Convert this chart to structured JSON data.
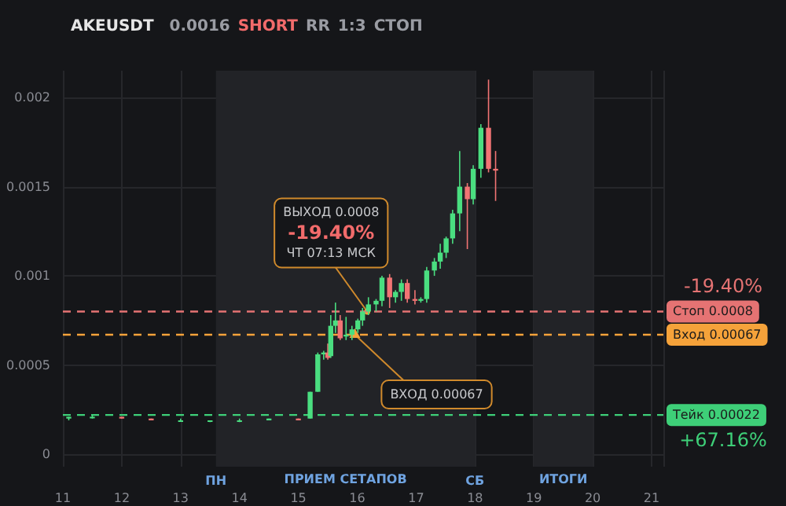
{
  "chart_data": {
    "type": "candlestick",
    "title": "AKEUSDT",
    "subtitle": "0.0016 SHORT RR 1:3 СТОП",
    "x": [
      11.1,
      11.5,
      12,
      12.5,
      13,
      13.5,
      14,
      14.5,
      15,
      15.2,
      15.33,
      15.43,
      15.5,
      15.55,
      15.63,
      15.71,
      15.81,
      15.91,
      16.01,
      16.09,
      16.19,
      16.32,
      16.42,
      16.55,
      16.65,
      16.75,
      16.85,
      16.98,
      17.08,
      17.18,
      17.31,
      17.41,
      17.51,
      17.62,
      17.74,
      17.87,
      17.97,
      18.1,
      18.23,
      18.35
    ],
    "ohlc": [
      [
        0.0002,
        0.00021,
        0.00019,
        0.00021
      ],
      [
        0.00021,
        0.00022,
        0.0002,
        0.00021
      ],
      [
        0.00021,
        0.00021,
        0.0002,
        0.0002
      ],
      [
        0.0002,
        0.0002,
        0.00019,
        0.00019
      ],
      [
        0.00019,
        0.0002,
        0.00019,
        0.00019
      ],
      [
        0.00019,
        0.00019,
        0.00018,
        0.00019
      ],
      [
        0.00019,
        0.0002,
        0.00018,
        0.00019
      ],
      [
        0.00019,
        0.0002,
        0.00019,
        0.0002
      ],
      [
        0.0002,
        0.0002,
        0.00019,
        0.00019
      ],
      [
        0.0002,
        0.00035,
        0.0002,
        0.00035
      ],
      [
        0.00035,
        0.00057,
        0.00035,
        0.00056
      ],
      [
        0.00056,
        0.00058,
        0.00053,
        0.00057
      ],
      [
        0.00057,
        0.00062,
        0.00053,
        0.00054
      ],
      [
        0.00055,
        0.00078,
        0.00054,
        0.00072
      ],
      [
        0.00072,
        0.00085,
        0.00068,
        0.00075
      ],
      [
        0.00075,
        0.00078,
        0.00064,
        0.00065
      ],
      [
        0.00066,
        0.00077,
        0.00064,
        0.00067
      ],
      [
        0.00067,
        0.00072,
        0.00064,
        0.0007
      ],
      [
        0.0007,
        0.00076,
        0.00068,
        0.00075
      ],
      [
        0.00075,
        0.00082,
        0.00072,
        0.0008
      ],
      [
        0.0008,
        0.00088,
        0.00078,
        0.00084
      ],
      [
        0.00084,
        0.00087,
        0.0008,
        0.00086
      ],
      [
        0.00086,
        0.001,
        0.00083,
        0.00099
      ],
      [
        0.00099,
        0.00101,
        0.00082,
        0.00088
      ],
      [
        0.00088,
        0.00092,
        0.00085,
        0.00091
      ],
      [
        0.00091,
        0.00098,
        0.00086,
        0.00096
      ],
      [
        0.00096,
        0.00098,
        0.00085,
        0.00087
      ],
      [
        0.00087,
        0.00092,
        0.00084,
        0.00086
      ],
      [
        0.00086,
        0.00088,
        0.00085,
        0.00087
      ],
      [
        0.00087,
        0.00105,
        0.00085,
        0.00103
      ],
      [
        0.00103,
        0.0011,
        0.001,
        0.00108
      ],
      [
        0.00108,
        0.00118,
        0.00104,
        0.00113
      ],
      [
        0.00113,
        0.00122,
        0.0011,
        0.00121
      ],
      [
        0.00121,
        0.00137,
        0.00118,
        0.00135
      ],
      [
        0.00135,
        0.0017,
        0.00125,
        0.0015
      ],
      [
        0.0015,
        0.00152,
        0.00115,
        0.00143
      ],
      [
        0.00143,
        0.00162,
        0.0014,
        0.0016
      ],
      [
        0.0016,
        0.00185,
        0.00155,
        0.00183
      ],
      [
        0.00183,
        0.0021,
        0.00158,
        0.0016
      ],
      [
        0.0016,
        0.0017,
        0.00142,
        0.00159
      ]
    ],
    "colors": [
      "#4ade80",
      "#4ade80",
      "#f27474",
      "#f27474",
      "#4ade80",
      "#4ade80",
      "#4ade80",
      "#4ade80",
      "#f27474",
      "#4ade80",
      "#4ade80",
      "#4ade80",
      "#f27474",
      "#4ade80",
      "#4ade80",
      "#f27474",
      "#4ade80",
      "#4ade80",
      "#4ade80",
      "#4ade80",
      "#4ade80",
      "#4ade80",
      "#4ade80",
      "#f27474",
      "#4ade80",
      "#4ade80",
      "#f27474",
      "#f27474",
      "#4ade80",
      "#4ade80",
      "#4ade80",
      "#4ade80",
      "#4ade80",
      "#4ade80",
      "#4ade80",
      "#f27474",
      "#4ade80",
      "#4ade80",
      "#f27474",
      "#f27474"
    ],
    "xlim": [
      11,
      21.2
    ],
    "xticks": [
      11,
      12,
      13,
      14,
      15,
      16,
      17,
      18,
      19,
      20,
      21
    ],
    "ylim": [
      -7e-05,
      0.00215
    ],
    "yticks": [
      0,
      0.0005,
      0.001,
      0.0015,
      0.002
    ],
    "grid": true,
    "bands": [
      {
        "axis": "x",
        "from": 13.6,
        "to": 18,
        "label": "ПРИЕМ СЕТАПОВ",
        "color": "#222327"
      },
      {
        "axis": "x",
        "from": 19,
        "to": 20,
        "label": "ИТОГИ",
        "color": "#222327"
      }
    ],
    "ref_lines": [
      {
        "axis": "y",
        "value": 0.0008,
        "label": "Стоп 0.0008",
        "color": "#e57373",
        "line_style": "dashed"
      },
      {
        "axis": "y",
        "value": 0.00067,
        "label": "Вход 0.00067",
        "color": "#f5a23a",
        "line_style": "dashed"
      },
      {
        "axis": "y",
        "value": 0.00022,
        "label": "Тейк 0.00022",
        "color": "#3ecf78",
        "line_style": "dashed"
      }
    ],
    "annotations": [
      "ПН",
      "СБ",
      {
        "text": "ВЫХОД 0.0008\n-19.40%\nЧТ 07:13 МСК",
        "x": 16.17,
        "y": 0.0008
      },
      {
        "text": "ВХОД 0.00067",
        "x": 15.96,
        "y": 0.00067
      },
      "-19.40%",
      "+67.16%"
    ]
  }
}
